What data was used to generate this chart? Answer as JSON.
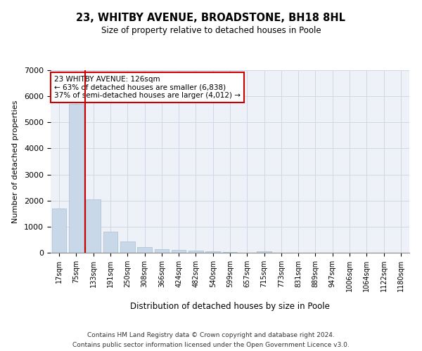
{
  "title": "23, WHITBY AVENUE, BROADSTONE, BH18 8HL",
  "subtitle": "Size of property relative to detached houses in Poole",
  "xlabel": "Distribution of detached houses by size in Poole",
  "ylabel": "Number of detached properties",
  "bar_color": "#c8d8e8",
  "bar_edge_color": "#a8bfce",
  "grid_color": "#d0d8e8",
  "background_color": "#eef2f8",
  "property_line_color": "#cc0000",
  "annotation_box_color": "#cc0000",
  "annotation_text_line1": "23 WHITBY AVENUE: 126sqm",
  "annotation_text_line2": "← 63% of detached houses are smaller (6,838)",
  "annotation_text_line3": "37% of semi-detached houses are larger (4,012) →",
  "footnote1": "Contains HM Land Registry data © Crown copyright and database right 2024.",
  "footnote2": "Contains public sector information licensed under the Open Government Licence v3.0.",
  "categories": [
    "17sqm",
    "75sqm",
    "133sqm",
    "191sqm",
    "250sqm",
    "308sqm",
    "366sqm",
    "424sqm",
    "482sqm",
    "540sqm",
    "599sqm",
    "657sqm",
    "715sqm",
    "773sqm",
    "831sqm",
    "889sqm",
    "947sqm",
    "1006sqm",
    "1064sqm",
    "1122sqm",
    "1180sqm"
  ],
  "values": [
    1700,
    5700,
    2050,
    800,
    430,
    210,
    130,
    95,
    70,
    45,
    25,
    0,
    55,
    0,
    0,
    0,
    0,
    0,
    0,
    0,
    0
  ],
  "ylim": [
    0,
    7000
  ],
  "yticks": [
    0,
    1000,
    2000,
    3000,
    4000,
    5000,
    6000,
    7000
  ],
  "property_line_x": 1.5
}
